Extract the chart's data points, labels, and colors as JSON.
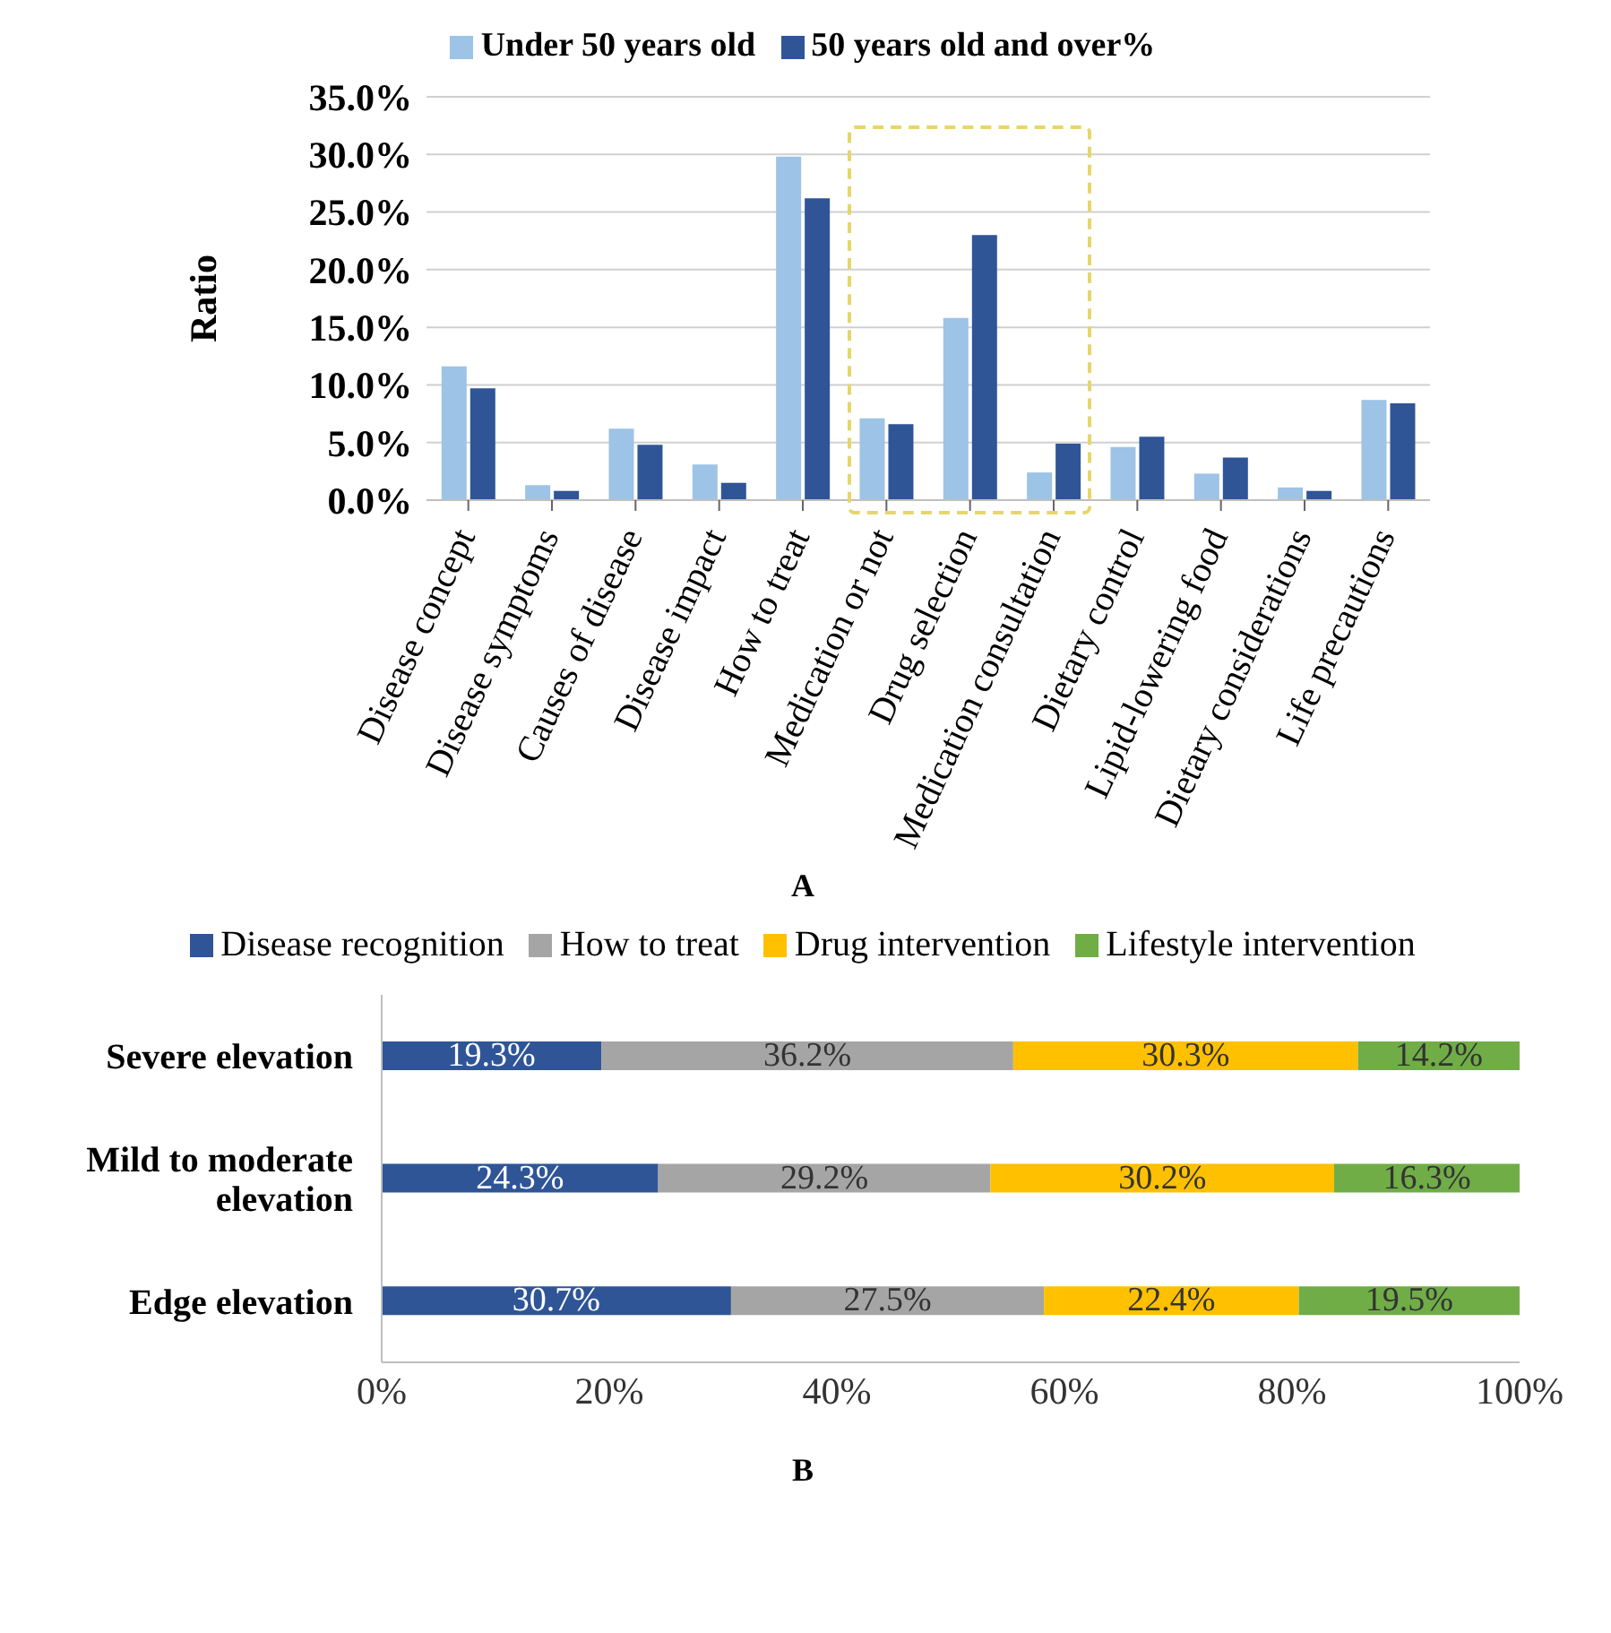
{
  "chart_data": [
    {
      "type": "bar",
      "ylabel": "Ratio",
      "categories": [
        "Disease concept",
        "Disease symptoms",
        "Causes of disease",
        "Disease impact",
        "How to treat",
        "Medication or not",
        "Drug selection",
        "Medication consultation",
        "Dietary control",
        "Lipid-lowering food",
        "Dietary considerations",
        "Life precautions"
      ],
      "series": [
        {
          "name": "Under 50 years old",
          "color": "#9dc3e6",
          "values": [
            11.6,
            1.3,
            6.2,
            3.1,
            29.8,
            7.1,
            15.8,
            2.4,
            4.6,
            2.3,
            1.1,
            8.7
          ]
        },
        {
          "name": "50 years old and over%",
          "color": "#2f5597",
          "values": [
            9.7,
            0.8,
            4.8,
            1.5,
            26.2,
            6.6,
            23.0,
            4.9,
            5.5,
            3.7,
            0.8,
            8.4
          ]
        }
      ],
      "ylim": [
        0,
        35
      ],
      "yticks": [
        {
          "value": 0,
          "label": "0.0%"
        },
        {
          "value": 5,
          "label": "5.0%"
        },
        {
          "value": 10,
          "label": "10.0%"
        },
        {
          "value": 15,
          "label": "15.0%"
        },
        {
          "value": 20,
          "label": "20.0%"
        },
        {
          "value": 25,
          "label": "25.0%"
        },
        {
          "value": 30,
          "label": "30.0%"
        },
        {
          "value": 35,
          "label": "35.0%"
        }
      ],
      "grid": "y",
      "legend": "top",
      "annotations": [
        "A"
      ]
    },
    {
      "type": "bar",
      "orientation": "horizontal",
      "stacked": true,
      "categories": [
        "Severe elevation",
        "Mild to moderate elevation",
        "Edge elevation"
      ],
      "series": [
        {
          "name": "Disease recognition",
          "color": "#2f5597",
          "values": [
            19.3,
            24.3,
            30.7
          ],
          "value_labels": [
            "19.3%",
            "24.3%",
            "30.7%"
          ]
        },
        {
          "name": "How to treat",
          "color": "#a5a5a5",
          "values": [
            36.2,
            29.2,
            27.5
          ],
          "value_labels": [
            "36.2%",
            "29.2%",
            "27.5%"
          ]
        },
        {
          "name": "Drug intervention",
          "color": "#ffc000",
          "values": [
            30.3,
            30.2,
            22.4
          ],
          "value_labels": [
            "30.3%",
            "30.2%",
            "22.4%"
          ]
        },
        {
          "name": "Lifestyle intervention",
          "color": "#70ad47",
          "values": [
            14.2,
            16.3,
            19.5
          ],
          "value_labels": [
            "14.2%",
            "16.3%",
            "19.5%"
          ]
        }
      ],
      "xlim": [
        0,
        100
      ],
      "xticks": [
        {
          "value": 0,
          "label": "0%"
        },
        {
          "value": 20,
          "label": "20%"
        },
        {
          "value": 40,
          "label": "40%"
        },
        {
          "value": 60,
          "label": "60%"
        },
        {
          "value": 80,
          "label": "80%"
        },
        {
          "value": 100,
          "label": "100%"
        }
      ],
      "grid": false,
      "legend": "top",
      "annotations": [
        "B"
      ]
    }
  ]
}
